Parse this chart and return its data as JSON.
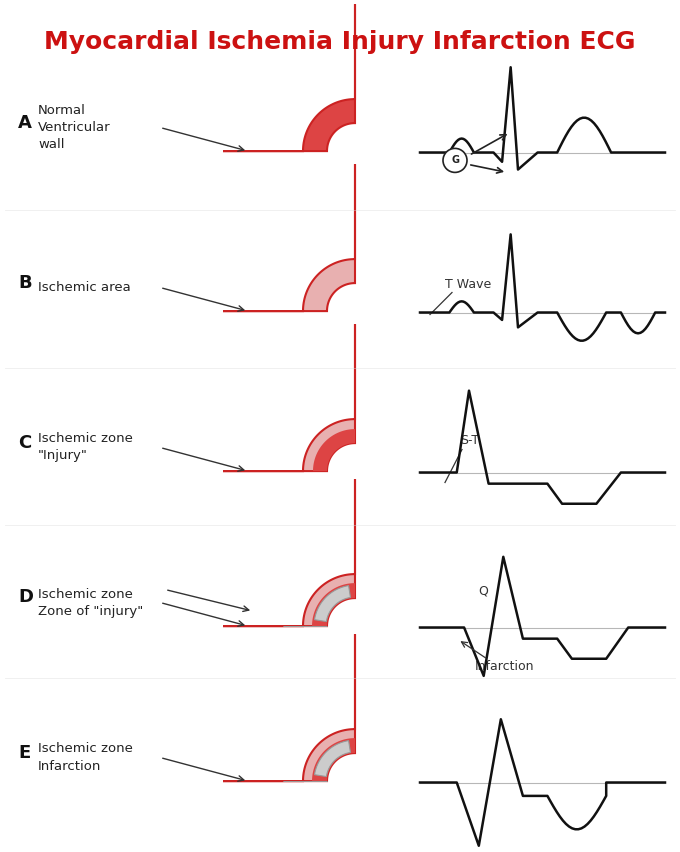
{
  "title": "Myocardial Ischemia Injury Infarction ECG",
  "title_color": "#cc1111",
  "title_fontsize": 18,
  "background_color": "#ffffff",
  "rows": [
    {
      "label": "A",
      "text_lines": [
        "Normal",
        "Ventricular",
        "wall"
      ],
      "ecg_type": "normal",
      "vessel_type": "A"
    },
    {
      "label": "B",
      "text_lines": [
        "Ischemic area"
      ],
      "ecg_type": "inverted_t",
      "vessel_type": "B"
    },
    {
      "label": "C",
      "text_lines": [
        "Ischemic zone",
        "\"Injury\""
      ],
      "ecg_type": "st_elevation",
      "vessel_type": "C"
    },
    {
      "label": "D",
      "text_lines": [
        "Ischemic zone",
        "Zone of \"injury\""
      ],
      "ecg_type": "pathological_q",
      "vessel_type": "D"
    },
    {
      "label": "E",
      "text_lines": [
        "Ischemic zone",
        "Infarction"
      ],
      "ecg_type": "deep_q",
      "vessel_type": "E"
    }
  ],
  "red_dark": "#cc2222",
  "red_mid": "#dd4444",
  "red_light": "#f0a0a0",
  "red_ischemic": "#e8b0b0",
  "gray_infarct": "#cccccc",
  "line_color": "#111111",
  "label_color": "#111111",
  "text_color": "#222222"
}
